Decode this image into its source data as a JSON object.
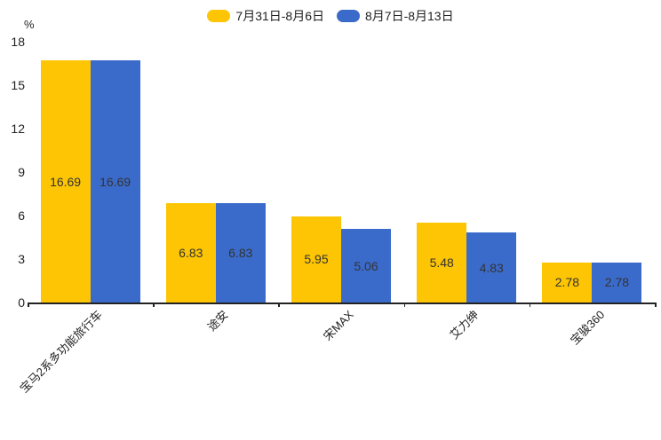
{
  "chart_data": {
    "type": "bar",
    "title": "",
    "unit": "%",
    "categories": [
      "宝马2系多功能旅行车",
      "途安",
      "宋MAX",
      "艾力绅",
      "宝骏360"
    ],
    "series": [
      {
        "name": "7月31日-8月6日",
        "color": "#FDC504",
        "values": [
          16.69,
          6.83,
          5.95,
          5.48,
          2.78
        ]
      },
      {
        "name": "8月7日-8月13日",
        "color": "#3B6BCA",
        "values": [
          16.69,
          6.83,
          5.06,
          4.83,
          2.78
        ]
      }
    ],
    "ylim": [
      0,
      18
    ],
    "yticks": [
      0,
      3,
      6,
      9,
      12,
      15,
      18
    ],
    "grid": false,
    "legend_position": "top-center",
    "value_label_position": "inside-middle",
    "value_label_color": "#333333",
    "axis_color": "#222222",
    "xtick_rotation_deg": 45
  }
}
